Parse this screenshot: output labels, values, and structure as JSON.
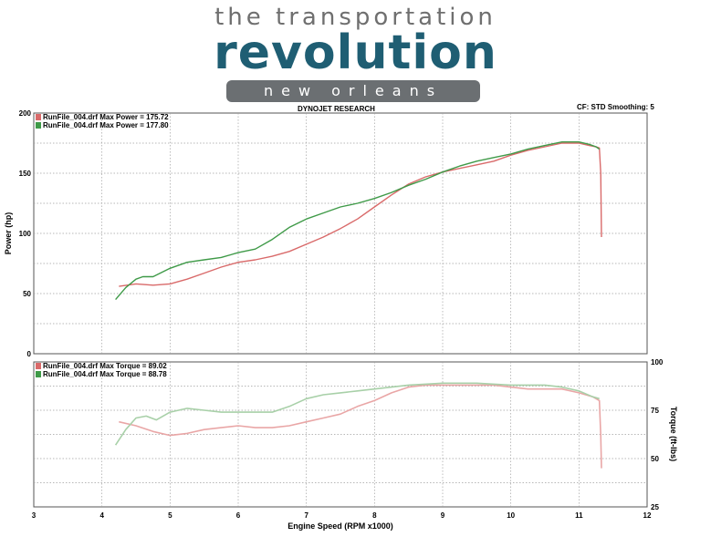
{
  "header": {
    "logo_line1": "the transportation",
    "logo_word": "revolution",
    "logo_banner": "new orleans",
    "source": "DYNOJET RESEARCH",
    "settings": "CF: STD  Smoothing: 5"
  },
  "colors": {
    "red": "#d96a6a",
    "green": "#3f9a48",
    "red_light": "#e9a6a6",
    "green_light": "#a8d0a8",
    "grid": "#a0a0a0"
  },
  "chart_data": [
    {
      "type": "line",
      "ylabel": "Power (hp)",
      "xlim": [
        3,
        12
      ],
      "ylim": [
        0,
        200
      ],
      "yticks": [
        0,
        50,
        100,
        150,
        200
      ],
      "legend": "top-left",
      "series": [
        {
          "name": "RunFile_004.drf Max Power = 175.72",
          "color": "red",
          "x": [
            4.25,
            4.5,
            4.75,
            5.0,
            5.25,
            5.5,
            5.75,
            6.0,
            6.25,
            6.5,
            6.75,
            7.0,
            7.25,
            7.5,
            7.75,
            8.0,
            8.25,
            8.5,
            8.75,
            9.0,
            9.25,
            9.5,
            9.75,
            10.0,
            10.25,
            10.5,
            10.75,
            11.0,
            11.15,
            11.25,
            11.3,
            11.32,
            11.33
          ],
          "y": [
            56,
            58,
            57,
            58,
            62,
            67,
            72,
            76,
            78,
            81,
            85,
            91,
            97,
            104,
            112,
            122,
            132,
            141,
            147,
            151,
            154,
            157,
            160,
            165,
            169,
            172,
            175,
            175,
            173,
            172,
            171,
            150,
            97
          ]
        },
        {
          "name": "RunFile_004.drf Max Power = 177.80",
          "color": "green",
          "x": [
            4.2,
            4.35,
            4.5,
            4.6,
            4.75,
            5.0,
            5.25,
            5.5,
            5.75,
            6.0,
            6.25,
            6.5,
            6.75,
            7.0,
            7.25,
            7.5,
            7.75,
            8.0,
            8.25,
            8.5,
            8.75,
            9.0,
            9.25,
            9.5,
            9.75,
            10.0,
            10.25,
            10.5,
            10.75,
            11.0,
            11.15,
            11.25,
            11.3
          ],
          "y": [
            45,
            55,
            62,
            64,
            64,
            71,
            76,
            78,
            80,
            84,
            87,
            95,
            105,
            112,
            117,
            122,
            125,
            129,
            134,
            140,
            145,
            151,
            156,
            160,
            163,
            166,
            170,
            173,
            176,
            176,
            174,
            172,
            170
          ]
        }
      ]
    },
    {
      "type": "line",
      "ylabel": "Torque (ft-lbs)",
      "xlabel": "Engine Speed (RPM x1000)",
      "xlim": [
        3,
        12
      ],
      "ylim": [
        25,
        100
      ],
      "yticks": [
        25,
        50,
        75,
        100
      ],
      "xticks": [
        3,
        4,
        5,
        6,
        7,
        8,
        9,
        10,
        11,
        12
      ],
      "legend": "top-left",
      "series": [
        {
          "name": "RunFile_004.drf Max Torque = 89.02",
          "color": "red",
          "x": [
            4.25,
            4.5,
            4.75,
            5.0,
            5.25,
            5.5,
            5.75,
            6.0,
            6.25,
            6.5,
            6.75,
            7.0,
            7.25,
            7.5,
            7.75,
            8.0,
            8.25,
            8.5,
            8.75,
            9.0,
            9.25,
            9.5,
            9.75,
            10.0,
            10.25,
            10.5,
            10.75,
            11.0,
            11.2,
            11.3,
            11.32,
            11.33
          ],
          "y": [
            69,
            67,
            64,
            62,
            63,
            65,
            66,
            67,
            66,
            66,
            67,
            69,
            71,
            73,
            77,
            80,
            84,
            87,
            88,
            88,
            88,
            88,
            88,
            87,
            86,
            86,
            86,
            84,
            82,
            80,
            62,
            45
          ]
        },
        {
          "name": "RunFile_004.drf Max Torque = 88.78",
          "color": "green",
          "x": [
            4.2,
            4.35,
            4.5,
            4.65,
            4.8,
            5.0,
            5.25,
            5.5,
            5.75,
            6.0,
            6.25,
            6.5,
            6.75,
            7.0,
            7.25,
            7.5,
            7.75,
            8.0,
            8.5,
            9.0,
            9.5,
            10.0,
            10.5,
            10.75,
            11.0,
            11.2,
            11.3
          ],
          "y": [
            57,
            65,
            71,
            72,
            70,
            74,
            76,
            75,
            74,
            74,
            74,
            74,
            77,
            81,
            83,
            84,
            85,
            86,
            88,
            89,
            89,
            88,
            88,
            87,
            85,
            82,
            81
          ]
        }
      ]
    }
  ]
}
